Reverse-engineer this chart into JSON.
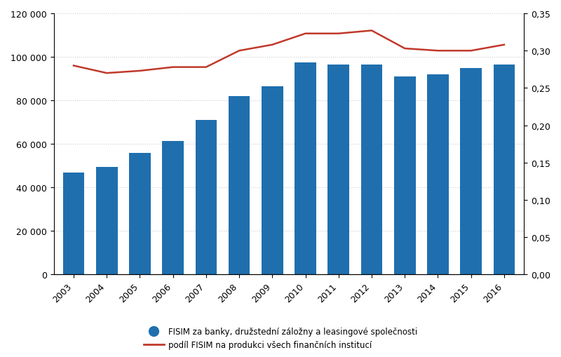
{
  "years": [
    2003,
    2004,
    2005,
    2006,
    2007,
    2008,
    2009,
    2010,
    2011,
    2012,
    2013,
    2014,
    2015,
    2016
  ],
  "bar_values": [
    47000,
    49500,
    56000,
    61500,
    71000,
    82000,
    86500,
    97500,
    96500,
    96500,
    91000,
    92000,
    95000,
    96500
  ],
  "line_values": [
    0.28,
    0.27,
    0.273,
    0.278,
    0.278,
    0.3,
    0.308,
    0.323,
    0.323,
    0.327,
    0.303,
    0.3,
    0.3,
    0.308
  ],
  "bar_color": "#1F6FAE",
  "line_color": "#C0392B",
  "bar_ylim": [
    0,
    120000
  ],
  "bar_yticks": [
    0,
    20000,
    40000,
    60000,
    80000,
    100000,
    120000
  ],
  "line_ylim": [
    0,
    0.35
  ],
  "line_yticks": [
    0,
    0.05,
    0.1,
    0.15,
    0.2,
    0.25,
    0.3,
    0.35
  ],
  "bar_legend": "FISIM za banky, družstední záložny a leasingové společnosti",
  "line_legend": "podíl FISIM na produkci všech finančních institucí",
  "background_color": "#ffffff",
  "grid_color": "#cccccc"
}
